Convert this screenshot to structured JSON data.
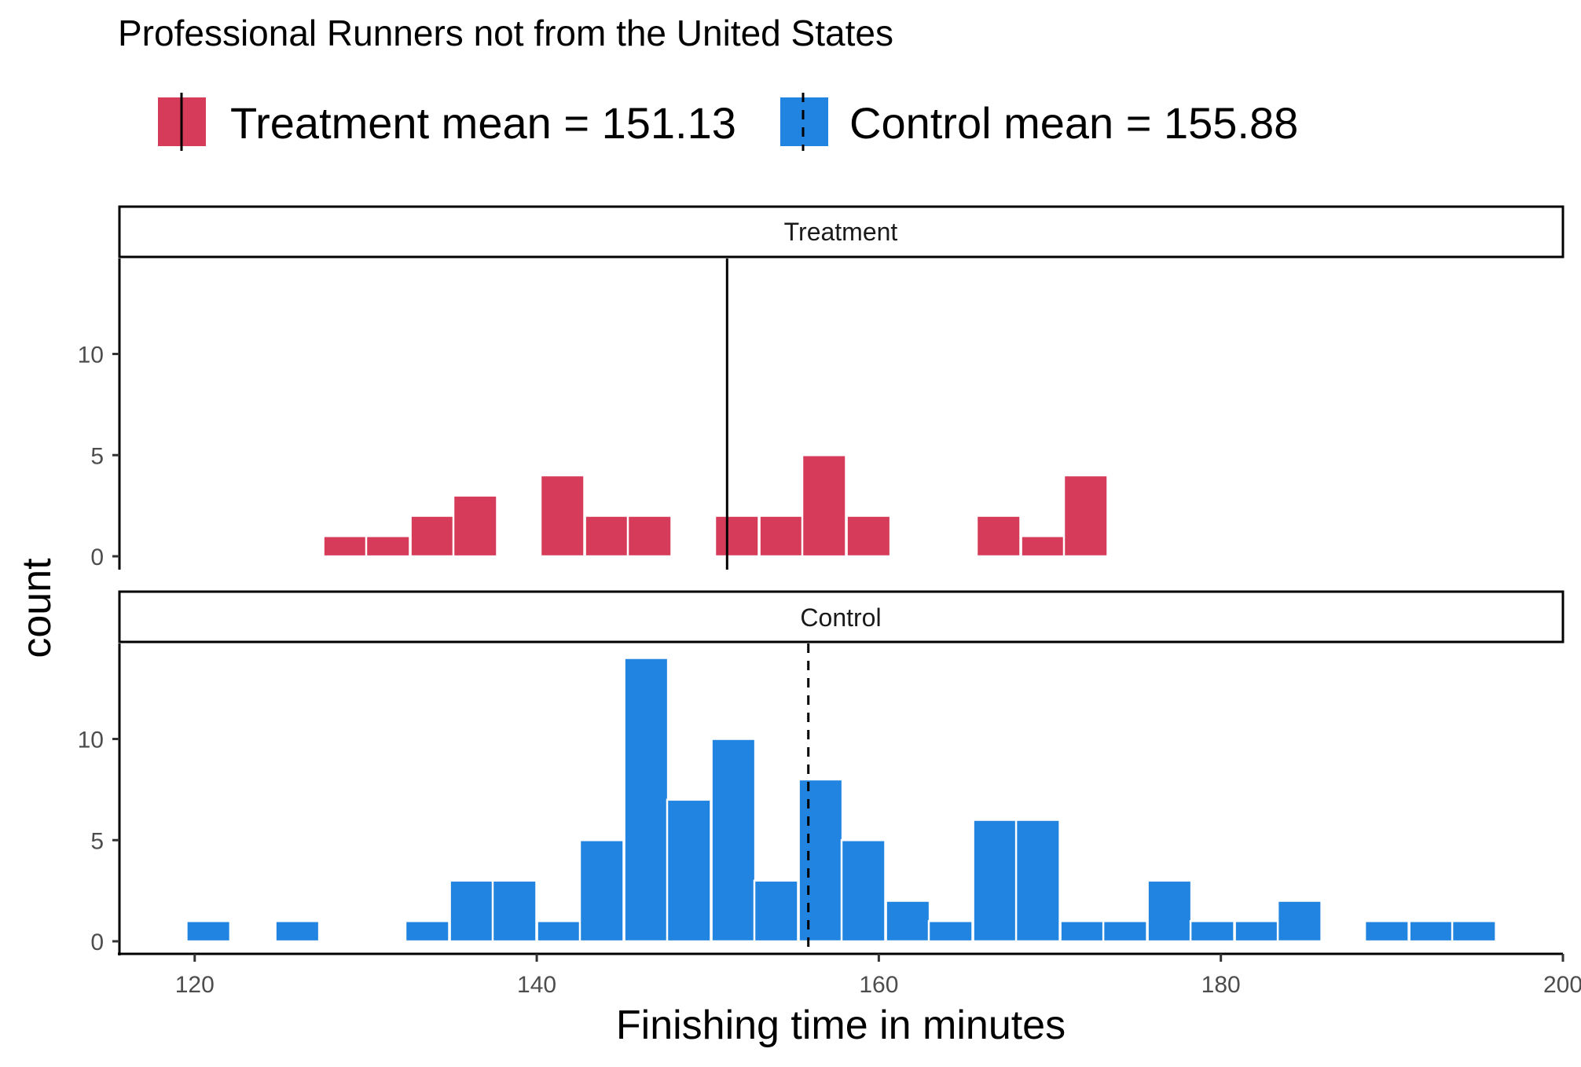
{
  "chart_data": {
    "type": "bar",
    "title": "Professional Runners not from the United States",
    "xlabel": "Finishing time in minutes",
    "ylabel": "count",
    "xlim": [
      115.6,
      200
    ],
    "ylim": [
      0,
      14
    ],
    "x_ticks": [
      120,
      140,
      160,
      180,
      200
    ],
    "y_ticks": [
      0,
      5,
      10
    ],
    "bin_width": 2.55,
    "legend_position": "top",
    "grid": false,
    "legend": [
      {
        "label": "Treatment mean = 151.13",
        "color": "#d63b5a",
        "line": "solid"
      },
      {
        "label": "Control mean =  155.88",
        "color": "#2184e0",
        "line": "dashed"
      }
    ],
    "panels": [
      {
        "name": "Treatment",
        "color": "#d63b5a",
        "mean": 151.13,
        "mean_line": "solid",
        "bins": [
          {
            "x": 128.8,
            "count": 1
          },
          {
            "x": 131.3,
            "count": 1
          },
          {
            "x": 133.9,
            "count": 2
          },
          {
            "x": 136.4,
            "count": 3
          },
          {
            "x": 141.5,
            "count": 4
          },
          {
            "x": 144.1,
            "count": 2
          },
          {
            "x": 146.6,
            "count": 2
          },
          {
            "x": 151.7,
            "count": 2
          },
          {
            "x": 154.3,
            "count": 2
          },
          {
            "x": 156.8,
            "count": 5
          },
          {
            "x": 159.4,
            "count": 2
          },
          {
            "x": 167.0,
            "count": 2
          },
          {
            "x": 169.6,
            "count": 1
          },
          {
            "x": 172.1,
            "count": 4
          }
        ]
      },
      {
        "name": "Control",
        "color": "#2184e0",
        "mean": 155.88,
        "mean_line": "dashed",
        "bins": [
          {
            "x": 120.8,
            "count": 1
          },
          {
            "x": 126.0,
            "count": 1
          },
          {
            "x": 133.6,
            "count": 1
          },
          {
            "x": 136.2,
            "count": 3
          },
          {
            "x": 138.7,
            "count": 3
          },
          {
            "x": 141.3,
            "count": 1
          },
          {
            "x": 143.8,
            "count": 5
          },
          {
            "x": 146.4,
            "count": 14
          },
          {
            "x": 148.9,
            "count": 7
          },
          {
            "x": 151.5,
            "count": 10
          },
          {
            "x": 154.0,
            "count": 3
          },
          {
            "x": 156.6,
            "count": 8
          },
          {
            "x": 159.1,
            "count": 5
          },
          {
            "x": 161.7,
            "count": 2
          },
          {
            "x": 164.2,
            "count": 1
          },
          {
            "x": 166.8,
            "count": 6
          },
          {
            "x": 169.3,
            "count": 6
          },
          {
            "x": 171.9,
            "count": 1
          },
          {
            "x": 174.4,
            "count": 1
          },
          {
            "x": 177.0,
            "count": 3
          },
          {
            "x": 179.5,
            "count": 1
          },
          {
            "x": 182.1,
            "count": 1
          },
          {
            "x": 184.6,
            "count": 2
          },
          {
            "x": 189.7,
            "count": 1
          },
          {
            "x": 192.3,
            "count": 1
          },
          {
            "x": 194.8,
            "count": 1
          }
        ]
      }
    ]
  }
}
